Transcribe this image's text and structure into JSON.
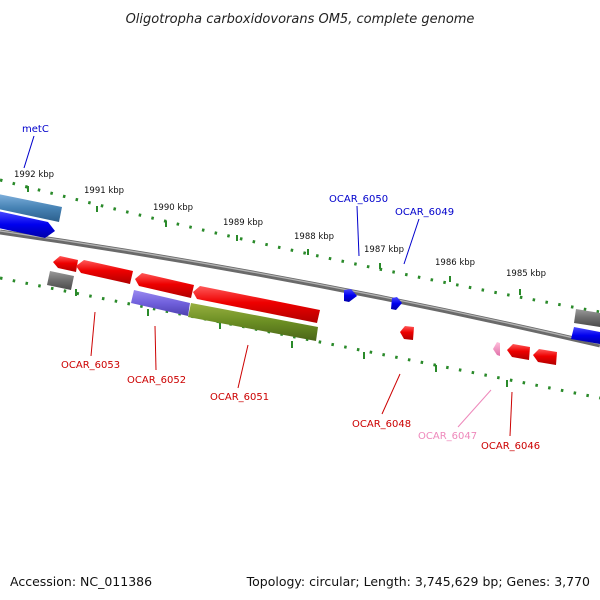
{
  "title": "Oligotropha carboxidovorans OM5, complete genome",
  "footer": {
    "accession": "Accession: NC_011386",
    "summary": "Topology: circular; Length: 3,745,629 bp; Genes: 3,770"
  },
  "scale_labels": [
    "1992 kbp",
    "1991 kbp",
    "1990 kbp",
    "1989 kbp",
    "1988 kbp",
    "1987 kbp",
    "1986 kbp",
    "1985 kbp"
  ],
  "colors": {
    "forward_label": "#0000cc",
    "reverse_label": "#cc0000",
    "pseudo_label": "#ee88bb",
    "backbone": "#808080",
    "tick": "#2a8a2a"
  },
  "genes_forward": [
    "metC",
    "OCAR_6050",
    "OCAR_6049"
  ],
  "genes_reverse": [
    "OCAR_6053",
    "OCAR_6052",
    "OCAR_6051",
    "OCAR_6048",
    "OCAR_6047",
    "OCAR_6046"
  ]
}
